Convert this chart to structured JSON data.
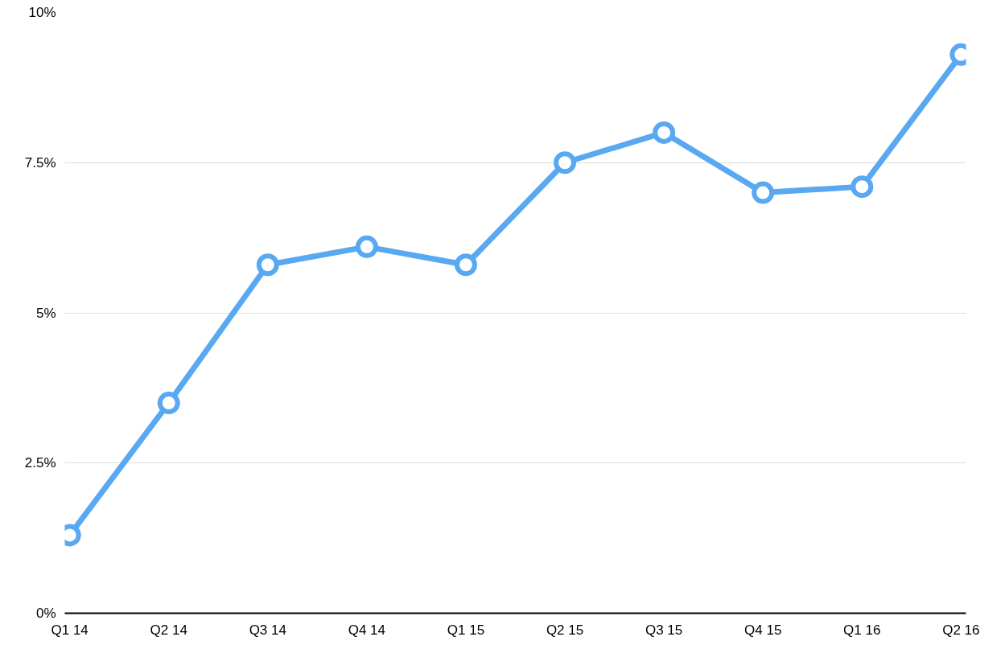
{
  "chart_data": {
    "type": "line",
    "categories": [
      "Q1 14",
      "Q2 14",
      "Q3 14",
      "Q4 14",
      "Q1 15",
      "Q2 15",
      "Q3 15",
      "Q4 15",
      "Q1 16",
      "Q2 16"
    ],
    "series": [
      {
        "color": "#58a8f2",
        "values": [
          1.3,
          3.5,
          5.8,
          6.1,
          5.8,
          7.5,
          8.0,
          7.0,
          7.1,
          9.3
        ]
      }
    ],
    "ylim": [
      0,
      10
    ],
    "yticks": [
      {
        "value": 0,
        "label": "0%"
      },
      {
        "value": 2.5,
        "label": "2.5%"
      },
      {
        "value": 5,
        "label": "5%"
      },
      {
        "value": 7.5,
        "label": "7.5%"
      },
      {
        "value": 10,
        "label": "10%"
      }
    ],
    "grid": "y",
    "marker": "circle",
    "line_style": "solid"
  }
}
